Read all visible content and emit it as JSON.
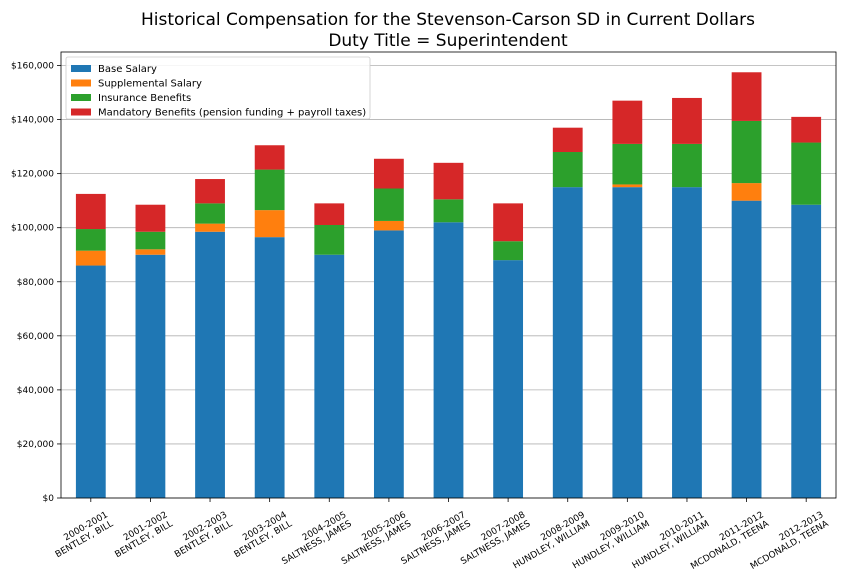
{
  "chart_data": {
    "type": "bar",
    "stacked": true,
    "title": "Historical Compensation for the Stevenson-Carson SD in Current Dollars",
    "subtitle": "Duty Title = Superintendent",
    "xlabel": "",
    "ylabel": "",
    "ylim": [
      0,
      165000
    ],
    "yticks": [
      0,
      20000,
      40000,
      60000,
      80000,
      100000,
      120000,
      140000,
      160000
    ],
    "ytick_labels": [
      "$0",
      "$20,000",
      "$40,000",
      "$60,000",
      "$80,000",
      "$100,000",
      "$120,000",
      "$140,000",
      "$160,000"
    ],
    "grid": "horizontal",
    "legend_position": "top-left",
    "categories": [
      [
        "2000-2001",
        "BENTLEY, BILL"
      ],
      [
        "2001-2002",
        "BENTLEY, BILL"
      ],
      [
        "2002-2003",
        "BENTLEY, BILL"
      ],
      [
        "2003-2004",
        "BENTLEY, BILL"
      ],
      [
        "2004-2005",
        "SALTNESS, JAMES"
      ],
      [
        "2005-2006",
        "SALTNESS, JAMES"
      ],
      [
        "2006-2007",
        "SALTNESS, JAMES"
      ],
      [
        "2007-2008",
        "SALTNESS, JAMES"
      ],
      [
        "2008-2009",
        "HUNDLEY, WILLIAM"
      ],
      [
        "2009-2010",
        "HUNDLEY, WILLIAM"
      ],
      [
        "2010-2011",
        "HUNDLEY, WILLIAM"
      ],
      [
        "2011-2012",
        "MCDONALD, TEENA"
      ],
      [
        "2012-2013",
        "MCDONALD, TEENA"
      ]
    ],
    "series": [
      {
        "name": "Base Salary",
        "color": "#1f77b4",
        "values": [
          86000,
          90000,
          98500,
          96500,
          90000,
          99000,
          102000,
          88000,
          115000,
          115000,
          115000,
          110000,
          108500
        ]
      },
      {
        "name": "Supplemental Salary",
        "color": "#ff7f0e",
        "values": [
          5500,
          2000,
          3000,
          10000,
          0,
          3500,
          0,
          0,
          0,
          1000,
          0,
          6500,
          0
        ]
      },
      {
        "name": "Insurance Benefits",
        "color": "#2ca02c",
        "values": [
          8000,
          6500,
          7500,
          15000,
          11000,
          12000,
          8500,
          7000,
          13000,
          15000,
          16000,
          23000,
          23000
        ]
      },
      {
        "name": "Mandatory Benefits (pension funding + payroll taxes)",
        "color": "#d62728",
        "values": [
          13000,
          10000,
          9000,
          9000,
          8000,
          11000,
          13500,
          14000,
          9000,
          16000,
          17000,
          18000,
          9500
        ]
      }
    ]
  }
}
